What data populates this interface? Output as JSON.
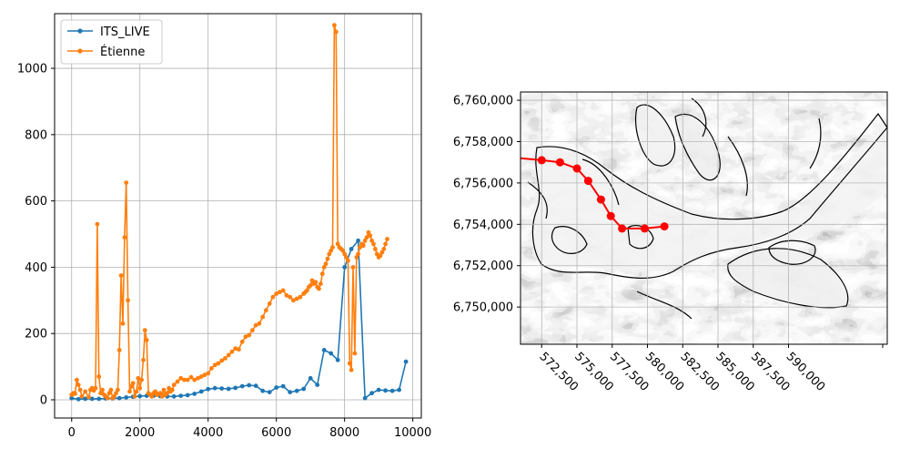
{
  "chart_data": [
    {
      "type": "line",
      "title": "",
      "xlabel": "",
      "ylabel": "",
      "xlim": [
        -500,
        10250
      ],
      "ylim": [
        -55,
        1165
      ],
      "xticks": [
        0,
        2000,
        4000,
        6000,
        8000,
        10000
      ],
      "yticks": [
        0,
        200,
        400,
        600,
        800,
        1000
      ],
      "grid": true,
      "legend_position": "top-left",
      "colors": {
        "ITS_LIVE": "#1f77b4",
        "Étienne": "#ff7f0e"
      },
      "series": [
        {
          "name": "ITS_LIVE",
          "color": "#1f77b4",
          "x": [
            0,
            200,
            400,
            600,
            800,
            1000,
            1200,
            1400,
            1600,
            1800,
            2000,
            2200,
            2400,
            2600,
            2800,
            3000,
            3200,
            3400,
            3600,
            3800,
            4000,
            4200,
            4400,
            4600,
            4800,
            5000,
            5200,
            5400,
            5600,
            5800,
            6000,
            6200,
            6400,
            6600,
            6800,
            7000,
            7200,
            7400,
            7600,
            7800,
            8000,
            8200,
            8400,
            8600,
            8800,
            9000,
            9200,
            9400,
            9600,
            9800
          ],
          "y": [
            5,
            2,
            3,
            3,
            3,
            4,
            4,
            5,
            7,
            9,
            11,
            12,
            12,
            11,
            10,
            10,
            12,
            14,
            18,
            25,
            32,
            35,
            34,
            33,
            36,
            41,
            44,
            42,
            27,
            23,
            37,
            41,
            23,
            27,
            33,
            65,
            45,
            150,
            140,
            120,
            400,
            455,
            480,
            5,
            20,
            30,
            28,
            27,
            30,
            115
          ]
        },
        {
          "name": "Étienne",
          "color": "#ff7f0e",
          "x": [
            0,
            50,
            100,
            150,
            200,
            250,
            300,
            400,
            500,
            550,
            600,
            650,
            700,
            750,
            800,
            850,
            900,
            950,
            1000,
            1050,
            1100,
            1150,
            1200,
            1250,
            1300,
            1350,
            1400,
            1450,
            1500,
            1550,
            1600,
            1650,
            1700,
            1750,
            1800,
            1850,
            1900,
            1950,
            2000,
            2050,
            2100,
            2150,
            2200,
            2250,
            2300,
            2350,
            2400,
            2450,
            2500,
            2550,
            2600,
            2650,
            2700,
            2750,
            2800,
            2850,
            2900,
            2950,
            3000,
            3100,
            3200,
            3300,
            3400,
            3500,
            3600,
            3700,
            3800,
            3900,
            4000,
            4100,
            4200,
            4300,
            4400,
            4500,
            4600,
            4700,
            4800,
            4900,
            5000,
            5100,
            5200,
            5300,
            5400,
            5500,
            5600,
            5700,
            5800,
            5900,
            6000,
            6100,
            6200,
            6300,
            6400,
            6500,
            6600,
            6700,
            6800,
            6850,
            6900,
            6950,
            7000,
            7050,
            7100,
            7150,
            7200,
            7250,
            7300,
            7350,
            7400,
            7450,
            7500,
            7550,
            7600,
            7650,
            7700,
            7750,
            7800,
            7850,
            7900,
            7950,
            8000,
            8050,
            8100,
            8150,
            8200,
            8250,
            8300,
            8350,
            8400,
            8450,
            8500,
            8550,
            8600,
            8650,
            8700,
            8750,
            8800,
            8850,
            8900,
            8950,
            9000,
            9050,
            9100,
            9150,
            9200,
            9250
          ],
          "y": [
            15,
            20,
            18,
            60,
            45,
            30,
            10,
            25,
            8,
            30,
            35,
            28,
            35,
            530,
            70,
            20,
            30,
            15,
            10,
            5,
            20,
            30,
            5,
            10,
            20,
            30,
            150,
            375,
            230,
            490,
            655,
            300,
            25,
            40,
            50,
            10,
            25,
            65,
            35,
            60,
            120,
            210,
            180,
            20,
            15,
            10,
            20,
            25,
            15,
            18,
            20,
            10,
            30,
            15,
            20,
            35,
            25,
            30,
            45,
            55,
            65,
            60,
            60,
            68,
            60,
            65,
            70,
            75,
            80,
            95,
            105,
            110,
            118,
            125,
            135,
            145,
            155,
            152,
            175,
            190,
            195,
            210,
            225,
            230,
            250,
            270,
            290,
            310,
            320,
            325,
            330,
            315,
            310,
            300,
            305,
            310,
            320,
            325,
            330,
            340,
            345,
            360,
            350,
            355,
            340,
            335,
            350,
            380,
            400,
            410,
            425,
            440,
            450,
            460,
            1130,
            1110,
            470,
            460,
            455,
            450,
            440,
            430,
            420,
            110,
            90,
            400,
            140,
            430,
            440,
            460,
            470,
            465,
            480,
            490,
            505,
            495,
            480,
            470,
            455,
            440,
            430,
            435,
            445,
            455,
            470,
            485
          ]
        }
      ]
    },
    {
      "type": "map",
      "title": "",
      "xlabel": "",
      "ylabel": "",
      "xlim": [
        571000,
        597000
      ],
      "ylim": [
        6748200,
        6760400
      ],
      "xticks": [
        572500,
        575000,
        577500,
        580000,
        582500,
        585000,
        587500,
        590000
      ],
      "xtick_labels": [
        "572,500",
        "575,000",
        "577,500",
        "580,000",
        "582,500",
        "585,000",
        "587,500",
        "590,000"
      ],
      "yticks": [
        6750000,
        6752000,
        6754000,
        6756000,
        6758000,
        6760000
      ],
      "ytick_labels": [
        "6,750,000",
        "6,752,000",
        "6,754,000",
        "6,756,000",
        "6,758,000",
        "6,760,000"
      ],
      "xtick_rotation": -45,
      "grid": true,
      "background": "grayscale hillshade raster",
      "glacier_outline_color": "#000000",
      "profile_line": {
        "color": "#ff0000",
        "x": [
          571000,
          572500,
          573800,
          575000,
          575800,
          576700,
          577400,
          578200,
          579800,
          581200
        ],
        "y": [
          6757200,
          6757100,
          6757000,
          6756700,
          6756100,
          6755200,
          6754400,
          6753800,
          6753800,
          6753900
        ]
      },
      "profile_markers": {
        "color": "#ff0000",
        "x": [
          572500,
          573800,
          575000,
          575800,
          576700,
          577400,
          578200,
          579800,
          581200
        ],
        "y": [
          6757100,
          6757000,
          6756700,
          6756100,
          6755200,
          6754400,
          6753800,
          6753800,
          6753900
        ]
      }
    }
  ]
}
